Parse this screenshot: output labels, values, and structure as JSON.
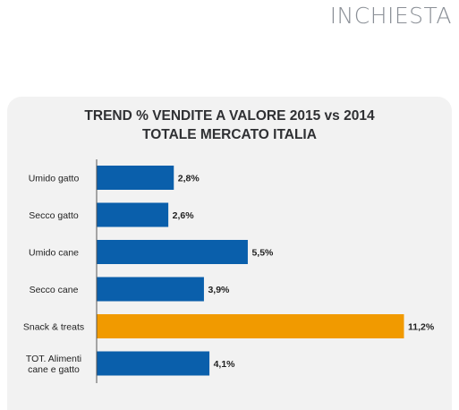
{
  "header": {
    "section": "INCHIESTA"
  },
  "chart_data": {
    "type": "bar",
    "orientation": "horizontal",
    "title_lines": [
      "TREND % VENDITE A VALORE 2015 vs 2014",
      "TOTALE MERCATO ITALIA"
    ],
    "categories": [
      [
        "Umido gatto"
      ],
      [
        "Secco gatto"
      ],
      [
        "Umido cane"
      ],
      [
        "Secco cane"
      ],
      [
        "Snack & treats"
      ],
      [
        "TOT. Alimenti",
        "cane e gatto"
      ]
    ],
    "values": [
      2.8,
      2.6,
      5.5,
      3.9,
      11.2,
      4.1
    ],
    "value_labels": [
      "2,8%",
      "2,6%",
      "5,5%",
      "3,9%",
      "11,2%",
      "4,1%"
    ],
    "xlim": [
      0,
      11.2
    ],
    "grid": false,
    "legend": "none",
    "colors": {
      "default": "#0a5fab",
      "highlight": "#f19a00",
      "highlight_index": 4
    }
  }
}
